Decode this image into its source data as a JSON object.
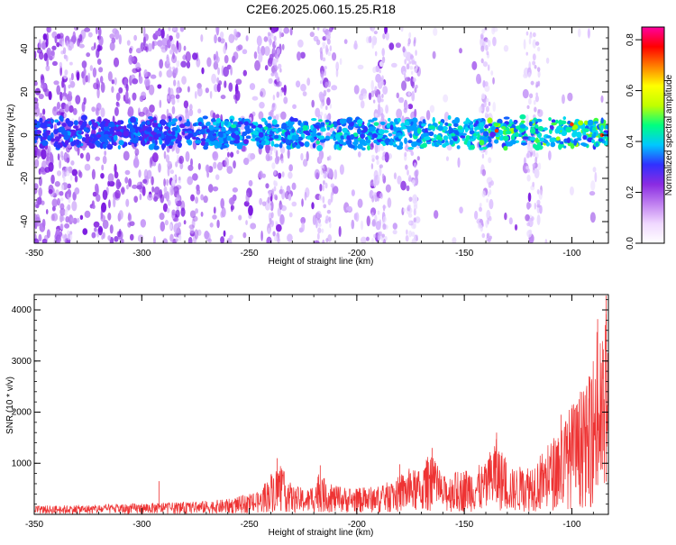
{
  "title": "C2E6.2025.060.15.25.R18",
  "colors": {
    "snr_line": "#ee3333",
    "colorbar": [
      "#ffffff",
      "#f0d8ff",
      "#c080f0",
      "#8a2be2",
      "#3030ff",
      "#00c8ff",
      "#00ff80",
      "#c0ff00",
      "#ffff00",
      "#ff8000",
      "#ff0000",
      "#ff00a0"
    ]
  },
  "chart_data": [
    {
      "type": "heatmap",
      "name": "spectrogram",
      "xlabel": "Height of straight line (km)",
      "ylabel": "Frequency (Hz)",
      "xlim": [
        -350,
        -83
      ],
      "ylim": [
        -50,
        50
      ],
      "x_ticks": [
        -350,
        -300,
        -250,
        -200,
        -150,
        -100
      ],
      "y_ticks": [
        -40,
        -20,
        0,
        20,
        40
      ],
      "colorbar": {
        "label": "Normalized spectral amplitude",
        "range": [
          0.0,
          0.85
        ],
        "ticks": [
          "0.0",
          "0.2",
          "0.4",
          "0.6",
          "0.8"
        ]
      },
      "signal_band_hz": [
        -5,
        7
      ],
      "signal_peak_amplitude": 0.8,
      "background_vertical_streaks_km": [
        -335,
        -285,
        -238,
        -215,
        -190,
        -175,
        -140,
        -118
      ]
    },
    {
      "type": "line",
      "name": "snr",
      "xlabel": "Height of straight line (km)",
      "ylabel": "SNR (10 * v/v)",
      "xlim": [
        -350,
        -83
      ],
      "ylim": [
        0,
        4300
      ],
      "x_ticks": [
        -350,
        -300,
        -250,
        -200,
        -150,
        -100
      ],
      "y_ticks": [
        1000,
        2000,
        3000,
        4000
      ],
      "envelope": {
        "x": [
          -350,
          -320,
          -300,
          -280,
          -260,
          -245,
          -240,
          -236,
          -230,
          -222,
          -218,
          -210,
          -200,
          -190,
          -182,
          -176,
          -170,
          -166,
          -160,
          -150,
          -140,
          -136,
          -133,
          -128,
          -120,
          -112,
          -106,
          -100,
          -96,
          -92,
          -88,
          -86,
          -84,
          -83
        ],
        "y": [
          170,
          190,
          220,
          240,
          300,
          450,
          820,
          1000,
          560,
          500,
          800,
          560,
          520,
          560,
          700,
          900,
          850,
          1250,
          750,
          900,
          1000,
          1550,
          1300,
          900,
          1000,
          1300,
          1700,
          2200,
          2350,
          2600,
          3800,
          3300,
          4300,
          3400
        ]
      },
      "spikes": [
        {
          "x": -292,
          "y": 650
        },
        {
          "x": -237,
          "y": 1100
        },
        {
          "x": -217,
          "y": 960
        },
        {
          "x": -180,
          "y": 980
        },
        {
          "x": -165,
          "y": 1300
        },
        {
          "x": -135,
          "y": 1600
        },
        {
          "x": -105,
          "y": 1950
        },
        {
          "x": -96,
          "y": 2400
        },
        {
          "x": -92,
          "y": 2700
        },
        {
          "x": -88,
          "y": 3820
        },
        {
          "x": -84,
          "y": 4280
        }
      ]
    }
  ]
}
